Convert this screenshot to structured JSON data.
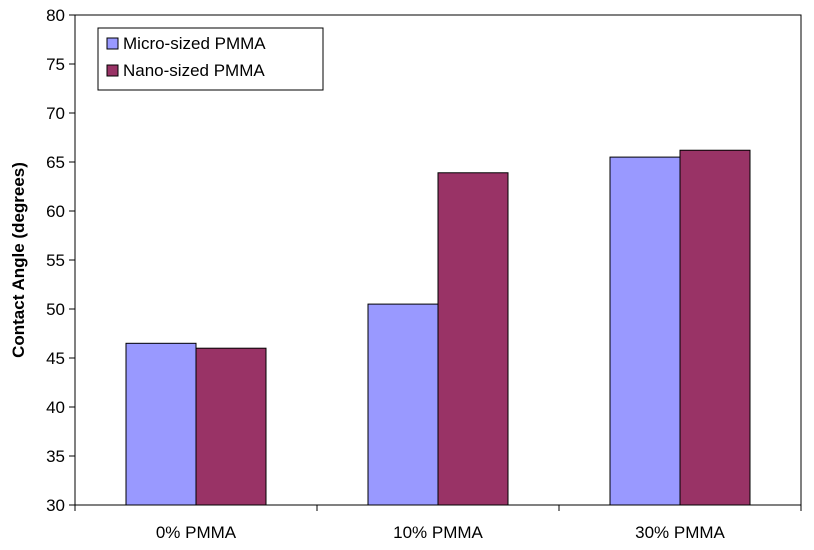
{
  "chart_data": {
    "type": "bar",
    "categories": [
      "0% PMMA",
      "10% PMMA",
      "30% PMMA"
    ],
    "series": [
      {
        "name": "Micro-sized PMMA",
        "values": [
          46.5,
          50.5,
          65.5
        ],
        "color": "#9999ff"
      },
      {
        "name": "Nano-sized PMMA",
        "values": [
          46.0,
          63.9,
          66.2
        ],
        "color": "#993366"
      }
    ],
    "title": "",
    "xlabel": "",
    "ylabel": "Contact Angle (degrees)",
    "ylim": [
      30,
      80
    ],
    "yticks": [
      "30",
      "35",
      "40",
      "45",
      "50",
      "55",
      "60",
      "65",
      "70",
      "75",
      "80"
    ],
    "grid": false,
    "legend_position": "top-left"
  }
}
